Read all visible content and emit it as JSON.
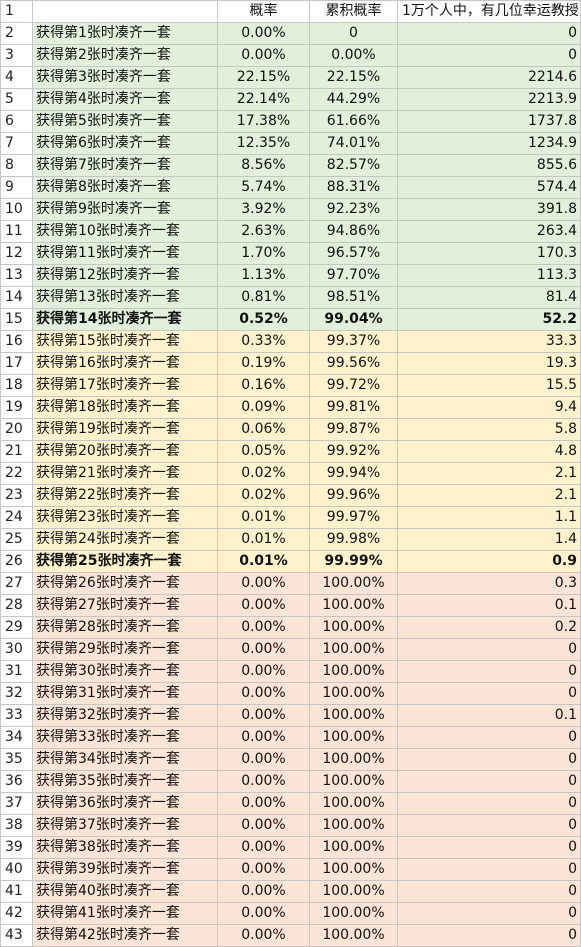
{
  "header": {
    "row_number": "1",
    "col_b": "",
    "col_c": "概率",
    "col_d": "累积概率",
    "col_e": "1万个人中，有几位幸运教授"
  },
  "rows": [
    {
      "n": "2",
      "label": "获得第1张时凑齐一套",
      "p": "0.00%",
      "cum": "0",
      "count": "0",
      "band": "g",
      "bold": false
    },
    {
      "n": "3",
      "label": "获得第2张时凑齐一套",
      "p": "0.00%",
      "cum": "0.00%",
      "count": "0",
      "band": "g",
      "bold": false
    },
    {
      "n": "4",
      "label": "获得第3张时凑齐一套",
      "p": "22.15%",
      "cum": "22.15%",
      "count": "2214.6",
      "band": "g",
      "bold": false
    },
    {
      "n": "5",
      "label": "获得第4张时凑齐一套",
      "p": "22.14%",
      "cum": "44.29%",
      "count": "2213.9",
      "band": "g",
      "bold": false
    },
    {
      "n": "6",
      "label": "获得第5张时凑齐一套",
      "p": "17.38%",
      "cum": "61.66%",
      "count": "1737.8",
      "band": "g",
      "bold": false
    },
    {
      "n": "7",
      "label": "获得第6张时凑齐一套",
      "p": "12.35%",
      "cum": "74.01%",
      "count": "1234.9",
      "band": "g",
      "bold": false
    },
    {
      "n": "8",
      "label": "获得第7张时凑齐一套",
      "p": "8.56%",
      "cum": "82.57%",
      "count": "855.6",
      "band": "g",
      "bold": false
    },
    {
      "n": "9",
      "label": "获得第8张时凑齐一套",
      "p": "5.74%",
      "cum": "88.31%",
      "count": "574.4",
      "band": "g",
      "bold": false
    },
    {
      "n": "10",
      "label": "获得第9张时凑齐一套",
      "p": "3.92%",
      "cum": "92.23%",
      "count": "391.8",
      "band": "g",
      "bold": false
    },
    {
      "n": "11",
      "label": "获得第10张时凑齐一套",
      "p": "2.63%",
      "cum": "94.86%",
      "count": "263.4",
      "band": "g",
      "bold": false
    },
    {
      "n": "12",
      "label": "获得第11张时凑齐一套",
      "p": "1.70%",
      "cum": "96.57%",
      "count": "170.3",
      "band": "g",
      "bold": false
    },
    {
      "n": "13",
      "label": "获得第12张时凑齐一套",
      "p": "1.13%",
      "cum": "97.70%",
      "count": "113.3",
      "band": "g",
      "bold": false
    },
    {
      "n": "14",
      "label": "获得第13张时凑齐一套",
      "p": "0.81%",
      "cum": "98.51%",
      "count": "81.4",
      "band": "g",
      "bold": false
    },
    {
      "n": "15",
      "label": "获得第14张时凑齐一套",
      "p": "0.52%",
      "cum": "99.04%",
      "count": "52.2",
      "band": "g",
      "bold": true
    },
    {
      "n": "16",
      "label": "获得第15张时凑齐一套",
      "p": "0.33%",
      "cum": "99.37%",
      "count": "33.3",
      "band": "y",
      "bold": false
    },
    {
      "n": "17",
      "label": "获得第16张时凑齐一套",
      "p": "0.19%",
      "cum": "99.56%",
      "count": "19.3",
      "band": "y",
      "bold": false
    },
    {
      "n": "18",
      "label": "获得第17张时凑齐一套",
      "p": "0.16%",
      "cum": "99.72%",
      "count": "15.5",
      "band": "y",
      "bold": false
    },
    {
      "n": "19",
      "label": "获得第18张时凑齐一套",
      "p": "0.09%",
      "cum": "99.81%",
      "count": "9.4",
      "band": "y",
      "bold": false
    },
    {
      "n": "20",
      "label": "获得第19张时凑齐一套",
      "p": "0.06%",
      "cum": "99.87%",
      "count": "5.8",
      "band": "y",
      "bold": false
    },
    {
      "n": "21",
      "label": "获得第20张时凑齐一套",
      "p": "0.05%",
      "cum": "99.92%",
      "count": "4.8",
      "band": "y",
      "bold": false
    },
    {
      "n": "22",
      "label": "获得第21张时凑齐一套",
      "p": "0.02%",
      "cum": "99.94%",
      "count": "2.1",
      "band": "y",
      "bold": false
    },
    {
      "n": "23",
      "label": "获得第22张时凑齐一套",
      "p": "0.02%",
      "cum": "99.96%",
      "count": "2.1",
      "band": "y",
      "bold": false
    },
    {
      "n": "24",
      "label": "获得第23张时凑齐一套",
      "p": "0.01%",
      "cum": "99.97%",
      "count": "1.1",
      "band": "y",
      "bold": false
    },
    {
      "n": "25",
      "label": "获得第24张时凑齐一套",
      "p": "0.01%",
      "cum": "99.98%",
      "count": "1.4",
      "band": "y",
      "bold": false
    },
    {
      "n": "26",
      "label": "获得第25张时凑齐一套",
      "p": "0.01%",
      "cum": "99.99%",
      "count": "0.9",
      "band": "y",
      "bold": true
    },
    {
      "n": "27",
      "label": "获得第26张时凑齐一套",
      "p": "0.00%",
      "cum": "100.00%",
      "count": "0.3",
      "band": "p",
      "bold": false
    },
    {
      "n": "28",
      "label": "获得第27张时凑齐一套",
      "p": "0.00%",
      "cum": "100.00%",
      "count": "0.1",
      "band": "p",
      "bold": false
    },
    {
      "n": "29",
      "label": "获得第28张时凑齐一套",
      "p": "0.00%",
      "cum": "100.00%",
      "count": "0.2",
      "band": "p",
      "bold": false
    },
    {
      "n": "30",
      "label": "获得第29张时凑齐一套",
      "p": "0.00%",
      "cum": "100.00%",
      "count": "0",
      "band": "p",
      "bold": false
    },
    {
      "n": "31",
      "label": "获得第30张时凑齐一套",
      "p": "0.00%",
      "cum": "100.00%",
      "count": "0",
      "band": "p",
      "bold": false
    },
    {
      "n": "32",
      "label": "获得第31张时凑齐一套",
      "p": "0.00%",
      "cum": "100.00%",
      "count": "0",
      "band": "p",
      "bold": false
    },
    {
      "n": "33",
      "label": "获得第32张时凑齐一套",
      "p": "0.00%",
      "cum": "100.00%",
      "count": "0.1",
      "band": "p",
      "bold": false
    },
    {
      "n": "34",
      "label": "获得第33张时凑齐一套",
      "p": "0.00%",
      "cum": "100.00%",
      "count": "0",
      "band": "p",
      "bold": false
    },
    {
      "n": "35",
      "label": "获得第34张时凑齐一套",
      "p": "0.00%",
      "cum": "100.00%",
      "count": "0",
      "band": "p",
      "bold": false
    },
    {
      "n": "36",
      "label": "获得第35张时凑齐一套",
      "p": "0.00%",
      "cum": "100.00%",
      "count": "0",
      "band": "p",
      "bold": false
    },
    {
      "n": "37",
      "label": "获得第36张时凑齐一套",
      "p": "0.00%",
      "cum": "100.00%",
      "count": "0",
      "band": "p",
      "bold": false
    },
    {
      "n": "38",
      "label": "获得第37张时凑齐一套",
      "p": "0.00%",
      "cum": "100.00%",
      "count": "0",
      "band": "p",
      "bold": false
    },
    {
      "n": "39",
      "label": "获得第38张时凑齐一套",
      "p": "0.00%",
      "cum": "100.00%",
      "count": "0",
      "band": "p",
      "bold": false
    },
    {
      "n": "40",
      "label": "获得第39张时凑齐一套",
      "p": "0.00%",
      "cum": "100.00%",
      "count": "0",
      "band": "p",
      "bold": false
    },
    {
      "n": "41",
      "label": "获得第40张时凑齐一套",
      "p": "0.00%",
      "cum": "100.00%",
      "count": "0",
      "band": "p",
      "bold": false
    },
    {
      "n": "42",
      "label": "获得第41张时凑齐一套",
      "p": "0.00%",
      "cum": "100.00%",
      "count": "0",
      "band": "p",
      "bold": false
    },
    {
      "n": "43",
      "label": "获得第42张时凑齐一套",
      "p": "0.00%",
      "cum": "100.00%",
      "count": "0",
      "band": "p",
      "bold": false
    }
  ],
  "colors": {
    "green_band": "#e2efda",
    "yellow_band": "#fff2cc",
    "pink_band": "#fce4d6",
    "gridline": "#c6c6c6"
  }
}
